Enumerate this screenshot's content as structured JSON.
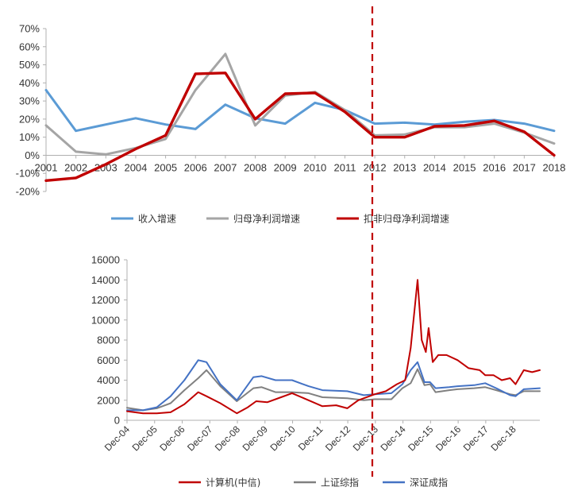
{
  "chart_data": [
    {
      "type": "line",
      "x": [
        "2001",
        "2002",
        "2003",
        "2004",
        "2005",
        "2006",
        "2007",
        "2008",
        "2009",
        "2010",
        "2011",
        "2012",
        "2013",
        "2014",
        "2015",
        "2016",
        "2017",
        "2018"
      ],
      "ylim": [
        -20,
        70
      ],
      "yticks": [
        "-20%",
        "-10%",
        "0%",
        "10%",
        "20%",
        "30%",
        "40%",
        "50%",
        "60%",
        "70%"
      ],
      "legend_position": "bottom",
      "series": [
        {
          "name": "收入增速",
          "color": "#5b9bd5",
          "values": [
            36,
            13.5,
            17,
            20.5,
            17,
            14.5,
            28,
            20.5,
            17.5,
            29,
            25,
            17.5,
            18,
            17,
            18.5,
            19.5,
            17.5,
            13.5
          ]
        },
        {
          "name": "归母净利润增速",
          "color": "#a5a5a5",
          "values": [
            16.5,
            2,
            0.5,
            4,
            9,
            36,
            56,
            16.5,
            33,
            35,
            25,
            11,
            11.5,
            15.5,
            15.5,
            17.5,
            12.5,
            6.5
          ]
        },
        {
          "name": "扣非归母净利润增速",
          "color": "#c00000",
          "values": [
            -14,
            -12.5,
            -5,
            3.5,
            11,
            45,
            45.5,
            20,
            34,
            34.5,
            24,
            10,
            10,
            16,
            16.5,
            19,
            13,
            0
          ]
        }
      ]
    },
    {
      "type": "line",
      "xticks": [
        "Dec-04",
        "Dec-05",
        "Dec-06",
        "Dec-07",
        "Dec-08",
        "Dec-09",
        "Dec-10",
        "Dec-11",
        "Dec-12",
        "Dec-13",
        "Dec-14",
        "Dec-15",
        "Dec-16",
        "Dec-17",
        "Dec-18"
      ],
      "ylim": [
        0,
        16000
      ],
      "yticks": [
        "0",
        "2000",
        "4000",
        "6000",
        "8000",
        "10000",
        "12000",
        "14000",
        "16000"
      ],
      "legend_position": "bottom",
      "series": [
        {
          "name": "计算机(中信)",
          "color": "#c00000",
          "x": [
            2004.92,
            2005.5,
            2006.0,
            2006.5,
            2007.0,
            2007.5,
            2007.8,
            2008.3,
            2008.9,
            2009.3,
            2009.6,
            2010.0,
            2010.5,
            2010.9,
            2011.5,
            2012.0,
            2012.5,
            2012.9,
            2013.3,
            2013.9,
            2014.3,
            2014.7,
            2015.0,
            2015.2,
            2015.45,
            2015.6,
            2015.75,
            2015.85,
            2016.0,
            2016.2,
            2016.5,
            2016.9,
            2017.3,
            2017.7,
            2017.9,
            2018.2,
            2018.5,
            2018.8,
            2019.0,
            2019.3,
            2019.6,
            2019.88
          ],
          "values": [
            900,
            700,
            700,
            800,
            1600,
            2800,
            2400,
            1700,
            700,
            1300,
            1900,
            1800,
            2300,
            2700,
            2000,
            1400,
            1500,
            1200,
            2000,
            2600,
            2900,
            3600,
            4000,
            7200,
            14000,
            8000,
            6800,
            9200,
            5800,
            6500,
            6500,
            6000,
            5200,
            5000,
            4500,
            4500,
            4000,
            4200,
            3600,
            5000,
            4800,
            5000
          ]
        },
        {
          "name": "上证综指",
          "color": "#808080",
          "x": [
            2004.92,
            2005.5,
            2006.0,
            2006.5,
            2007.0,
            2007.5,
            2007.8,
            2008.3,
            2008.9,
            2009.5,
            2009.8,
            2010.3,
            2010.9,
            2011.5,
            2012.0,
            2012.9,
            2013.5,
            2013.9,
            2014.5,
            2014.9,
            2015.2,
            2015.45,
            2015.7,
            2015.9,
            2016.1,
            2016.6,
            2016.9,
            2017.5,
            2017.9,
            2018.3,
            2018.8,
            2019.0,
            2019.3,
            2019.88
          ],
          "values": [
            1250,
            1000,
            1200,
            1700,
            3000,
            4200,
            5000,
            3400,
            1900,
            3200,
            3300,
            2800,
            2800,
            2700,
            2300,
            2200,
            2000,
            2100,
            2100,
            3200,
            3700,
            5100,
            3500,
            3600,
            2800,
            3000,
            3100,
            3200,
            3300,
            3000,
            2600,
            2500,
            2900,
            2900
          ]
        },
        {
          "name": "深证成指",
          "color": "#4472c4",
          "x": [
            2004.92,
            2005.5,
            2006.0,
            2006.5,
            2007.0,
            2007.5,
            2007.8,
            2008.3,
            2008.9,
            2009.5,
            2009.8,
            2010.3,
            2010.9,
            2011.5,
            2012.0,
            2012.9,
            2013.5,
            2013.9,
            2014.5,
            2014.9,
            2015.2,
            2015.45,
            2015.7,
            2015.9,
            2016.1,
            2016.6,
            2016.9,
            2017.5,
            2017.9,
            2018.3,
            2018.8,
            2019.0,
            2019.3,
            2019.88
          ],
          "values": [
            1000,
            1000,
            1300,
            2400,
            4000,
            6000,
            5800,
            3600,
            2000,
            4300,
            4400,
            4000,
            4000,
            3400,
            3000,
            2900,
            2500,
            2600,
            2700,
            3600,
            5000,
            5800,
            3800,
            3800,
            3200,
            3300,
            3400,
            3500,
            3700,
            3200,
            2500,
            2400,
            3100,
            3200
          ]
        }
      ]
    }
  ]
}
